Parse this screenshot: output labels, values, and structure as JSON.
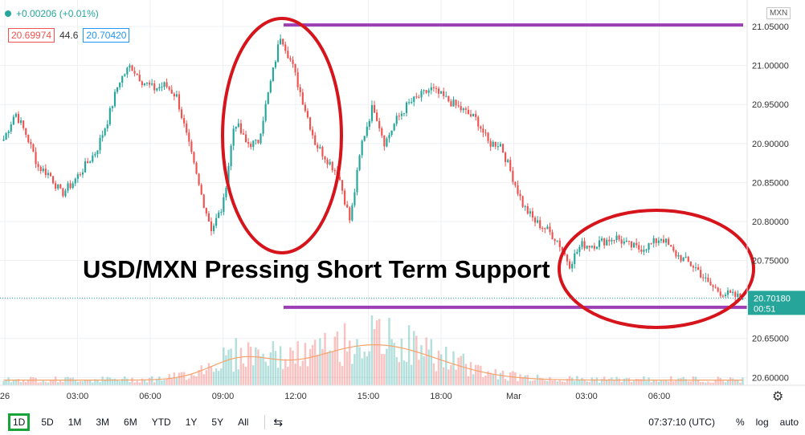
{
  "header": {
    "change": "+0.00206 (+0.01%)",
    "bid": "20.69974",
    "spread": "44.6",
    "ask": "20.70420",
    "symbol_tag": "MXN"
  },
  "colors": {
    "up": "#26a69a",
    "down": "#ef5350",
    "annotation": "#d6141c",
    "level_line": "#9c3fb5",
    "last_price": "#26a69a",
    "volume_ma": "#f5a36b"
  },
  "chart_data": {
    "type": "candlestick",
    "title": "USD/MXN Pressing Short Term Support",
    "x_ticks": [
      "26",
      "03:00",
      "06:00",
      "09:00",
      "12:00",
      "15:00",
      "18:00",
      "Mar",
      "03:00",
      "06:00"
    ],
    "y_ticks": [
      "21.05000",
      "21.00000",
      "20.95000",
      "20.90000",
      "20.85000",
      "20.80000",
      "20.75000",
      "20.70000",
      "20.65000",
      "20.60000"
    ],
    "ylim": [
      20.59,
      21.084
    ],
    "last_price": "20.70180",
    "countdown": "00:51",
    "resistance_level": 21.052,
    "support_level": 20.69,
    "price_path": [
      [
        "26",
        20.905
      ],
      [
        "00:30",
        20.94
      ],
      [
        "01:00",
        20.91
      ],
      [
        "01:30",
        20.87
      ],
      [
        "02:00",
        20.86
      ],
      [
        "02:30",
        20.835
      ],
      [
        "03:00",
        20.85
      ],
      [
        "03:30",
        20.87
      ],
      [
        "04:00",
        20.89
      ],
      [
        "04:30",
        20.93
      ],
      [
        "05:00",
        20.98
      ],
      [
        "05:30",
        21.0
      ],
      [
        "06:00",
        20.98
      ],
      [
        "06:30",
        20.97
      ],
      [
        "07:00",
        20.975
      ],
      [
        "07:30",
        20.96
      ],
      [
        "08:00",
        20.9
      ],
      [
        "08:30",
        20.84
      ],
      [
        "09:00",
        20.79
      ],
      [
        "09:30",
        20.82
      ],
      [
        "10:00",
        20.93
      ],
      [
        "10:30",
        20.9
      ],
      [
        "11:00",
        20.9
      ],
      [
        "11:30",
        20.97
      ],
      [
        "11:45",
        21.04
      ],
      [
        "12:00",
        21.0
      ],
      [
        "12:30",
        20.95
      ],
      [
        "13:00",
        20.9
      ],
      [
        "13:30",
        20.88
      ],
      [
        "14:00",
        20.86
      ],
      [
        "14:20",
        20.8
      ],
      [
        "14:40",
        20.9
      ],
      [
        "15:00",
        20.95
      ],
      [
        "15:30",
        20.9
      ],
      [
        "16:00",
        20.93
      ],
      [
        "16:30",
        20.95
      ],
      [
        "17:00",
        20.96
      ],
      [
        "17:30",
        20.97
      ],
      [
        "18:00",
        20.96
      ],
      [
        "18:30",
        20.95
      ],
      [
        "19:00",
        20.94
      ],
      [
        "19:30",
        20.93
      ],
      [
        "20:00",
        20.9
      ],
      [
        "20:30",
        20.9
      ],
      [
        "21:00",
        20.86
      ],
      [
        "21:30",
        20.82
      ],
      [
        "22:00",
        20.8
      ],
      [
        "22:30",
        20.79
      ],
      [
        "Mar",
        20.775
      ],
      [
        "00:20",
        20.745
      ],
      [
        "00:40",
        20.77
      ],
      [
        "01:00",
        20.77
      ],
      [
        "01:30",
        20.775
      ],
      [
        "02:00",
        20.78
      ],
      [
        "02:30",
        20.77
      ],
      [
        "03:00",
        20.765
      ],
      [
        "03:30",
        20.77
      ],
      [
        "04:00",
        20.78
      ],
      [
        "04:30",
        20.76
      ],
      [
        "05:00",
        20.75
      ],
      [
        "05:30",
        20.74
      ],
      [
        "06:00",
        20.72
      ],
      [
        "06:30",
        20.71
      ],
      [
        "07:00",
        20.705
      ],
      [
        "07:37",
        20.7018
      ]
    ]
  },
  "toolbar": {
    "ranges": [
      "1D",
      "5D",
      "1M",
      "3M",
      "6M",
      "YTD",
      "1Y",
      "5Y",
      "All"
    ],
    "active": "1D",
    "time": "07:37:10 (UTC)",
    "percent": "%",
    "log": "log",
    "auto": "auto"
  },
  "icons": {
    "status": "green-dot-icon",
    "compare": "compare-range-icon",
    "settings": "gear-icon"
  }
}
